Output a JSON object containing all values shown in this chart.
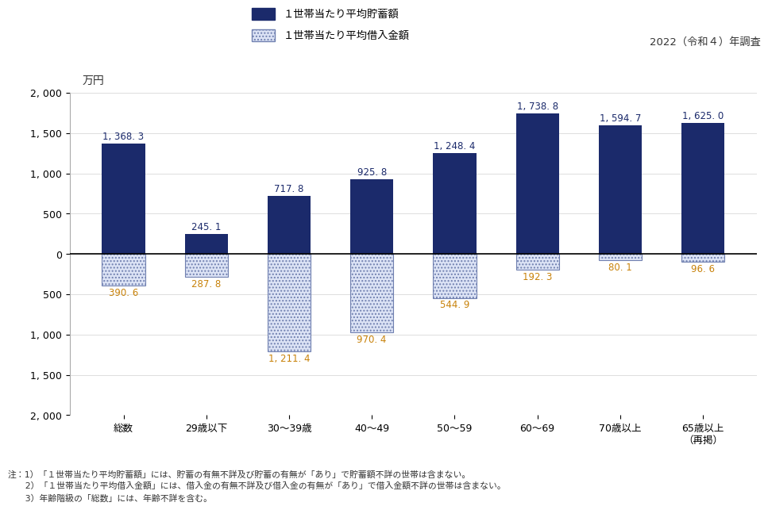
{
  "categories": [
    "総数",
    "29歳以下",
    "30〜39歳",
    "40〜49",
    "50〜59",
    "60〜69",
    "70歳以上",
    "65歳以上\n（再掲）"
  ],
  "savings": [
    1368.3,
    245.1,
    717.8,
    925.8,
    1248.4,
    1738.8,
    1594.7,
    1625.0
  ],
  "debt": [
    390.6,
    287.8,
    1211.4,
    970.4,
    544.9,
    192.3,
    80.1,
    96.6
  ],
  "savings_color": "#1b2a6b",
  "debt_color_face": "#dce3f5",
  "debt_color_edge": "#7080b0",
  "background_color": "#ffffff",
  "bar_width": 0.52,
  "ylabel": "万円",
  "legend_savings": "１世帯当たり平均貯蓄額",
  "legend_debt": "１世帯当たり平均借入金額",
  "annotation": "2022（令和４）年調査",
  "note1": "注：1）「１世帯当たり平均貯蓄額」には、貯蓄の有無不詳及び貯蓄の有無が「あり」で貯蓄額不詳の世帯は含まない。",
  "note2": "　　2）「１世帯当たり平均借入金額」には、借入金の有無不詳及び借入金の有無が「あり」で借入金額不詳の世帯は含まない。",
  "note3": "　　3）年齢階級の「総数」には、年齢不詳を含む。",
  "savings_label_color": "#1b2a6b",
  "debt_label_color": "#c8820a",
  "label_fontsize": 8.5,
  "tick_fontsize": 9.0,
  "note_fontsize": 7.8,
  "legend_fontsize": 9.5,
  "annotation_fontsize": 9.5
}
